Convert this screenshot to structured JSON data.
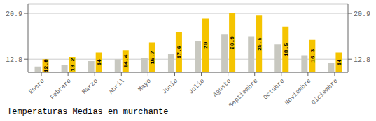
{
  "chart_data": {
    "type": "bar",
    "title": "Temperaturas Medias en murchante",
    "categories": [
      "Enero",
      "Febrero",
      "Marzo",
      "Abril",
      "Mayo",
      "Junio",
      "Julio",
      "Agosto",
      "Septiembre",
      "Octubre",
      "Noviembre",
      "Diciembre"
    ],
    "series": [
      {
        "color": "#C8C8C0",
        "values": [
          11.5,
          11.8,
          12.5,
          12.8,
          13.0,
          13.8,
          16.0,
          17.2,
          16.8,
          15.5,
          13.5,
          12.2
        ]
      },
      {
        "color": "#F5C400",
        "values": [
          12.8,
          13.2,
          14.0,
          14.4,
          15.7,
          17.6,
          20.0,
          20.9,
          20.5,
          18.5,
          16.3,
          14.0
        ],
        "data_labels": true
      }
    ],
    "ylim": [
      10.5,
      22.5
    ],
    "yticks": [
      12.8,
      20.9
    ],
    "y2lim": [
      10.5,
      22.5
    ],
    "y2ticks": [
      12.8,
      20.9
    ],
    "grid": true
  }
}
